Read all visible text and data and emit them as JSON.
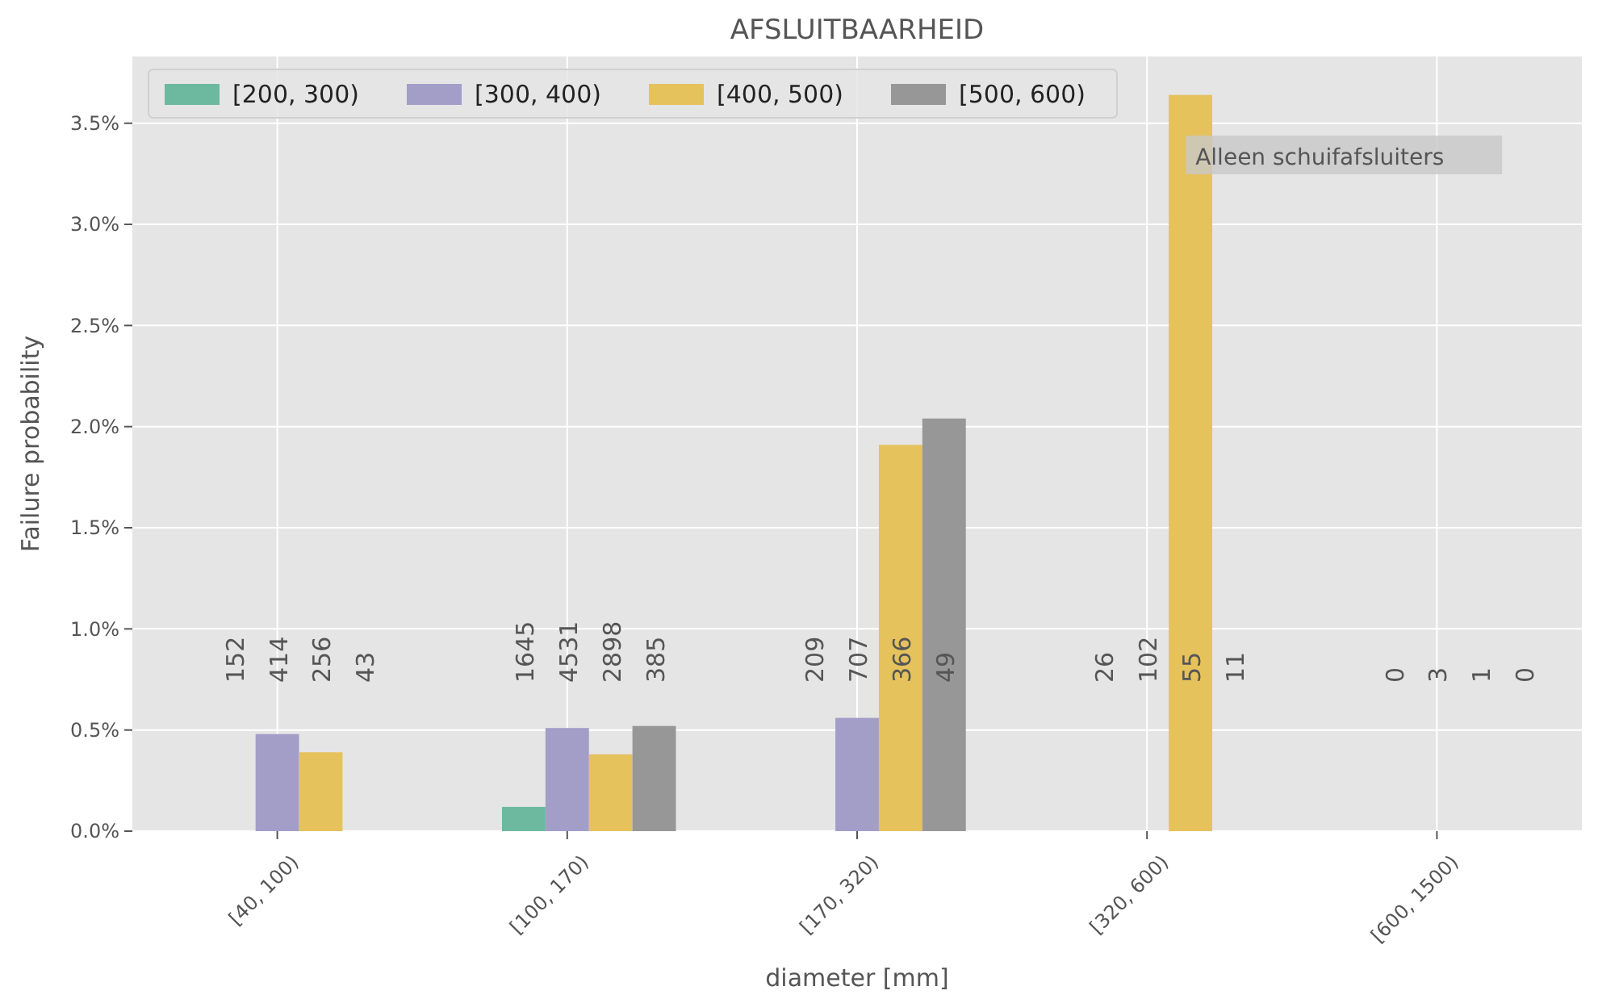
{
  "chart_data": {
    "type": "bar",
    "title": "AFSLUITBAARHEID",
    "xlabel": "diameter [mm]",
    "ylabel": "Failure probability",
    "categories": [
      "[40, 100)",
      "[100, 170)",
      "[170, 320)",
      "[320, 600)",
      "[600, 1500)"
    ],
    "series": [
      {
        "name": "[200, 300)",
        "color": "#6cb9a0",
        "values": [
          0,
          0.12,
          0,
          0,
          0
        ]
      },
      {
        "name": "[300, 400)",
        "color": "#a29ec8",
        "values": [
          0.48,
          0.51,
          0.56,
          0,
          0
        ]
      },
      {
        "name": "[400, 500)",
        "color": "#e5c25c",
        "values": [
          0.39,
          0.38,
          1.91,
          3.64,
          0
        ]
      },
      {
        "name": "[500, 600)",
        "color": "#979797",
        "values": [
          0,
          0.52,
          2.04,
          0,
          0
        ]
      }
    ],
    "ylim": [
      0,
      3.83
    ],
    "yticks": [
      {
        "value": 0,
        "label": "0.0%"
      },
      {
        "value": 0.5,
        "label": "0.5%"
      },
      {
        "value": 1,
        "label": "1.0%"
      },
      {
        "value": 1.5,
        "label": "1.5%"
      },
      {
        "value": 2,
        "label": "2.0%"
      },
      {
        "value": 2.5,
        "label": "2.5%"
      },
      {
        "value": 3,
        "label": "3.0%"
      },
      {
        "value": 3.5,
        "label": "3.5%"
      }
    ],
    "grid": true,
    "legend": "top left",
    "annotations": [
      "152",
      "414",
      "256",
      "43",
      "1645",
      "4531",
      "2898",
      "385",
      "209",
      "707",
      "366",
      "49",
      "26",
      "102",
      "55",
      "11",
      "0",
      "3",
      "1",
      "0",
      "Alleen schuifafsluiters"
    ]
  }
}
